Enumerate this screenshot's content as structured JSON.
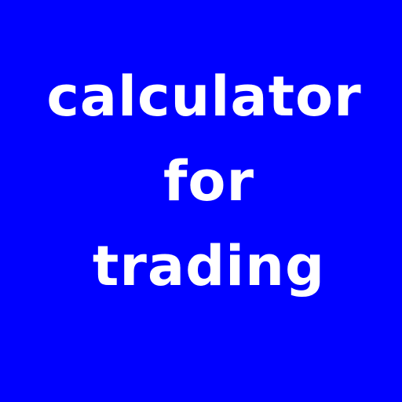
{
  "title": {
    "lines": [
      "calculator",
      "for",
      "trading"
    ]
  },
  "colors": {
    "background": "#0000ff",
    "text": "#ffffff"
  }
}
